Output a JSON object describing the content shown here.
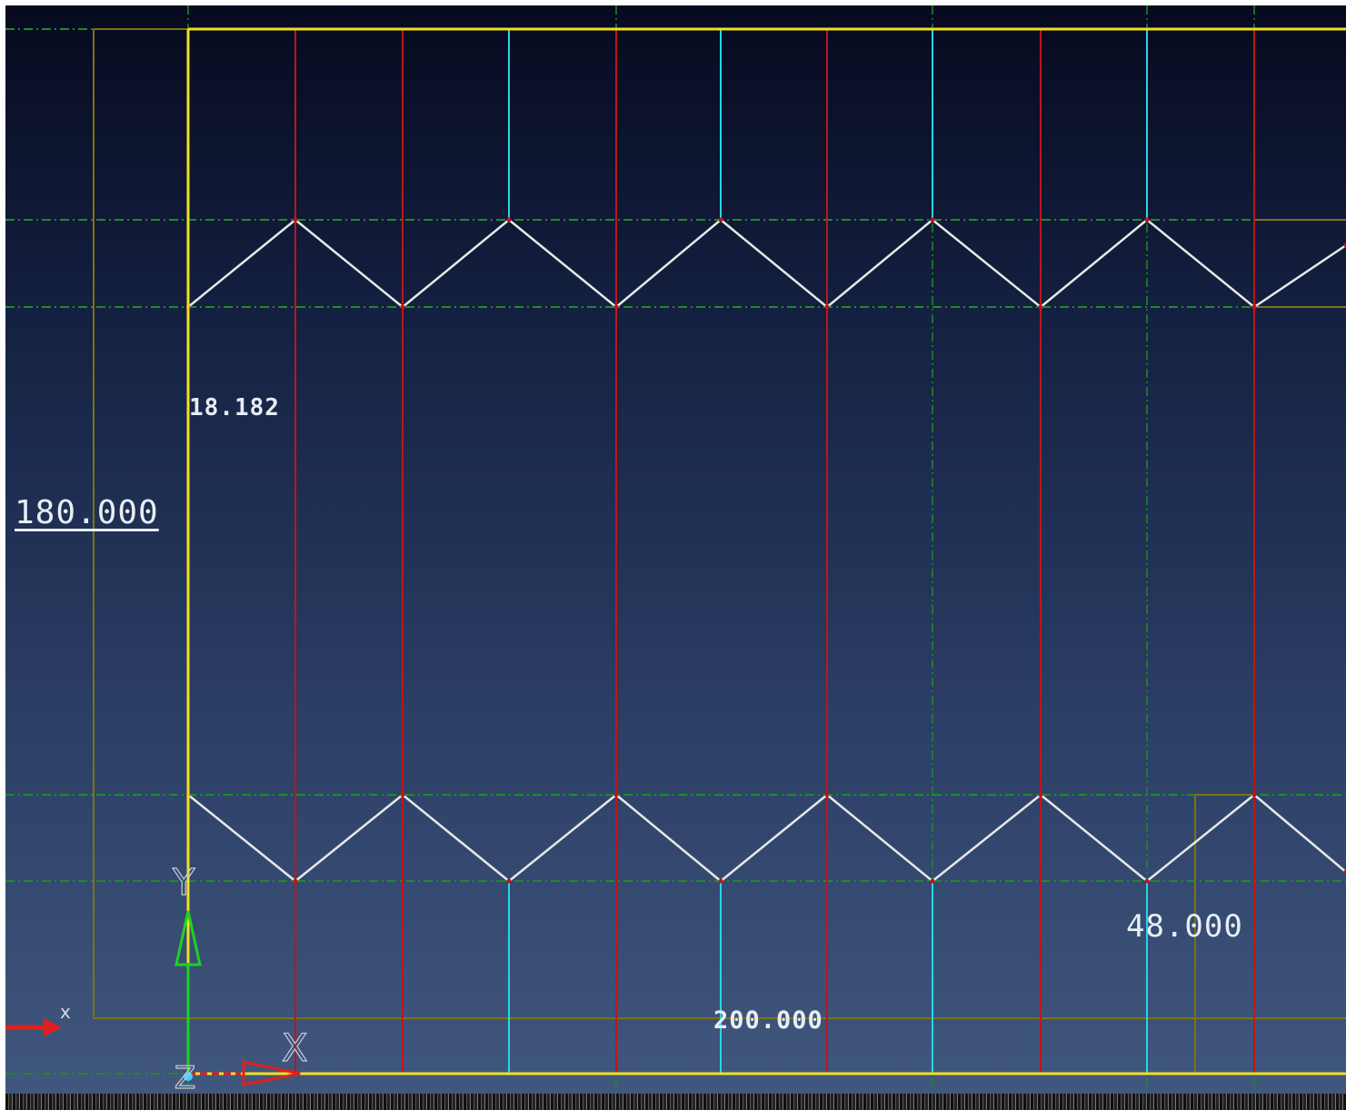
{
  "dimensions": {
    "overall_height": "180.000",
    "tooth_dimension": "18.182",
    "small_dimension": "48.000",
    "overall_width": "200.000"
  },
  "axes": {
    "x_label": "X",
    "y_label": "Y",
    "z_label": "Z",
    "view_x_label": "x"
  },
  "colors": {
    "background_top": "#070a1f",
    "background_bottom": "#41587f",
    "outline": "#f0e020",
    "dimension_line": "#7a7412",
    "construction_line": "#1f8a2a",
    "cyan_line": "#22d8e6",
    "red_line": "#c0141c",
    "zigzag": "#e8e8e8",
    "x_axis_arrow": "#e02020",
    "y_axis_arrow": "#20d020"
  }
}
